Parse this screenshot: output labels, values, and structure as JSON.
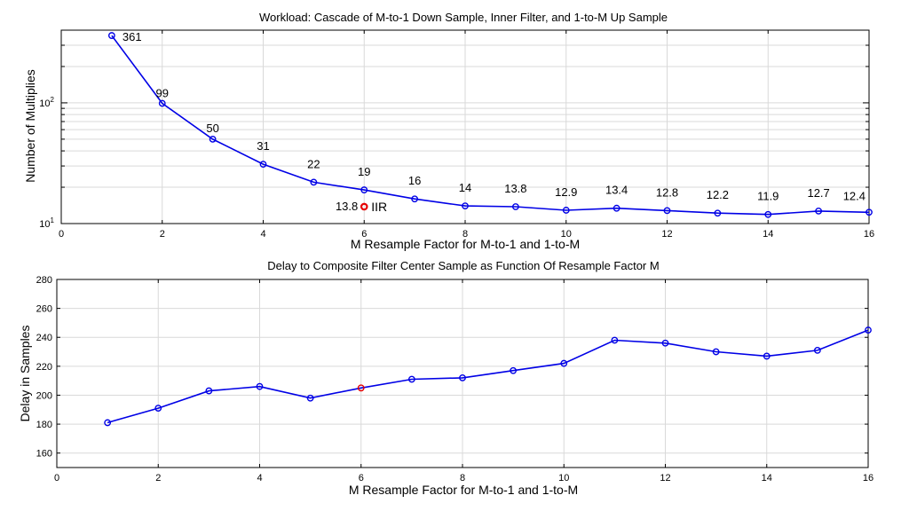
{
  "colors": {
    "series": "#0000e6",
    "highlight": "#e60000",
    "grid": "#d9d9d9",
    "axis": "#000000"
  },
  "chart_data": [
    {
      "type": "line",
      "title": "Workload: Cascade of M-to-1 Down Sample, Inner Filter, and 1-to-M Up Sample",
      "xlabel": "M Resample Factor for M-to-1 and 1-to-M",
      "ylabel": "Number of Multiplies",
      "yscale": "log",
      "xlim": [
        0,
        16
      ],
      "ylim": [
        10,
        400
      ],
      "xticks": [
        0,
        2,
        4,
        6,
        8,
        10,
        12,
        14,
        16
      ],
      "ytick_labels": [
        {
          "value": 10,
          "base": "10",
          "exp": "1"
        },
        {
          "value": 100,
          "base": "10",
          "exp": "2"
        }
      ],
      "grid": true,
      "series": [
        {
          "name": "Multiplies",
          "x": [
            1,
            2,
            3,
            4,
            5,
            6,
            7,
            8,
            9,
            10,
            11,
            12,
            13,
            14,
            15,
            16
          ],
          "values": [
            361,
            99,
            50,
            31,
            22,
            19,
            16,
            14,
            13.8,
            12.9,
            13.4,
            12.8,
            12.2,
            11.9,
            12.7,
            12.4
          ],
          "labels": [
            "361",
            "99",
            "50",
            "31",
            "22",
            "19",
            "16",
            "14",
            "13.8",
            "12.9",
            "13.4",
            "12.8",
            "12.2",
            "11.9",
            "12.7",
            "12.4"
          ]
        }
      ],
      "annotations": [
        {
          "name": "IIR",
          "x": 6,
          "y": 13.8,
          "value_label": "13.8",
          "text": "IIR"
        }
      ]
    },
    {
      "type": "line",
      "title": "Delay to Composite Filter Center Sample as Function Of Resample Factor M",
      "xlabel": "M Resample Factor for M-to-1 and 1-to-M",
      "ylabel": "Delay in Samples",
      "yscale": "linear",
      "xlim": [
        0,
        16
      ],
      "ylim": [
        150,
        280
      ],
      "xticks": [
        0,
        2,
        4,
        6,
        8,
        10,
        12,
        14,
        16
      ],
      "yticks": [
        160,
        180,
        200,
        220,
        240,
        260,
        280
      ],
      "grid": true,
      "series": [
        {
          "name": "Delay",
          "x": [
            1,
            2,
            3,
            4,
            5,
            6,
            7,
            8,
            9,
            10,
            11,
            12,
            13,
            14,
            15,
            16
          ],
          "values": [
            181,
            191,
            203,
            206,
            198,
            205,
            211,
            212,
            217,
            222,
            238,
            236,
            230,
            227,
            231,
            245
          ]
        }
      ],
      "highlight_x": 6
    }
  ]
}
